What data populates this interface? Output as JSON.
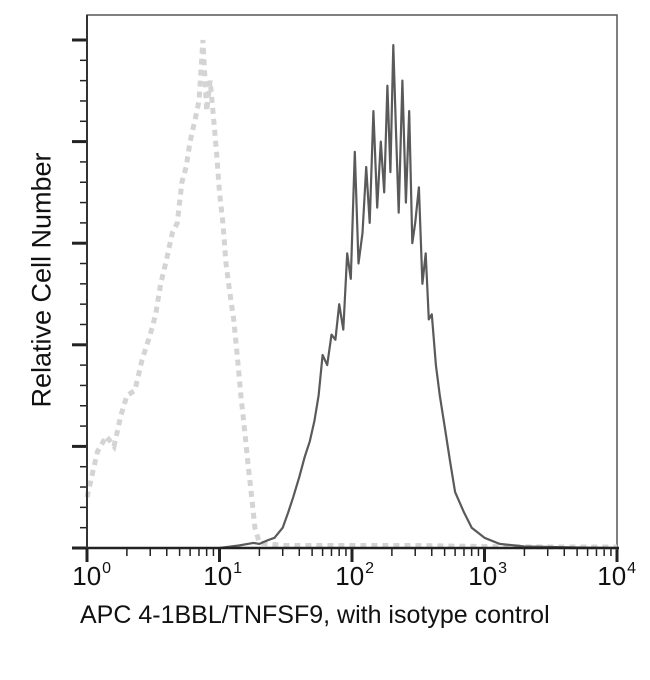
{
  "chart_data": {
    "type": "line",
    "title": "",
    "xlabel": "APC 4-1BBL/TNFSF9, with isotype control",
    "ylabel": "Relative Cell Number",
    "xscale": "log",
    "xlim": [
      1,
      10000
    ],
    "ylim": [
      0,
      100
    ],
    "x_ticks": [
      {
        "base": "10",
        "exp": "0",
        "value": 1
      },
      {
        "base": "10",
        "exp": "1",
        "value": 10
      },
      {
        "base": "10",
        "exp": "2",
        "value": 100
      },
      {
        "base": "10",
        "exp": "3",
        "value": 1000
      },
      {
        "base": "10",
        "exp": "4",
        "value": 10000
      }
    ],
    "y_major_ticks": 6,
    "y_tick_labels": "none",
    "grid": false,
    "legend": "none",
    "series": [
      {
        "name": "Isotype control",
        "style": "dashed",
        "color": "#d4d4d4",
        "x": [
          1.0,
          1.2,
          1.4,
          1.6,
          1.8,
          2.0,
          2.3,
          2.6,
          3.0,
          3.3,
          3.6,
          4.0,
          4.4,
          4.8,
          5.2,
          5.6,
          6.0,
          6.5,
          7.0,
          7.5,
          8.0,
          8.5,
          9.0,
          9.5,
          10.0,
          10.6,
          11.2,
          12.0,
          12.8,
          13.6,
          14.5,
          15.5,
          16.5,
          17.5,
          18.5,
          20,
          30,
          50,
          100,
          300,
          1000,
          3000,
          10000
        ],
        "y": [
          10,
          19,
          22,
          20,
          26,
          30,
          31,
          37,
          42,
          46,
          52,
          57,
          62,
          64,
          72,
          75,
          80,
          84,
          88,
          100,
          86,
          92,
          85,
          78,
          70,
          64,
          56,
          50,
          45,
          38,
          30,
          23,
          16,
          10,
          4,
          1,
          0.5,
          0.5,
          0.5,
          0.5,
          0.3,
          0.2,
          0.2
        ]
      },
      {
        "name": "APC 4-1BBL/TNFSF9",
        "style": "solid",
        "color": "#5a5a5a",
        "x": [
          10,
          14,
          18,
          20,
          23,
          26,
          30,
          33,
          36,
          40,
          44,
          48,
          52,
          56,
          60,
          65,
          70,
          75,
          80,
          86,
          92,
          98,
          105,
          112,
          120,
          128,
          136,
          145,
          155,
          165,
          175,
          185,
          195,
          205,
          215,
          225,
          240,
          255,
          270,
          285,
          300,
          320,
          340,
          360,
          380,
          400,
          430,
          460,
          500,
          550,
          600,
          700,
          800,
          1000,
          1300,
          2000,
          5000,
          10000
        ],
        "y": [
          0,
          0.5,
          1,
          0.8,
          1.5,
          2,
          4,
          7,
          10,
          14,
          18,
          21,
          25,
          30,
          38,
          36,
          42,
          41,
          48,
          43,
          58,
          53,
          78,
          56,
          62,
          75,
          64,
          86,
          67,
          80,
          70,
          91,
          74,
          99,
          82,
          66,
          92,
          68,
          86,
          60,
          64,
          71,
          52,
          58,
          45,
          46,
          36,
          30,
          24,
          17,
          11,
          7,
          4,
          2,
          0.8,
          0.3,
          0.1,
          0
        ]
      }
    ]
  }
}
